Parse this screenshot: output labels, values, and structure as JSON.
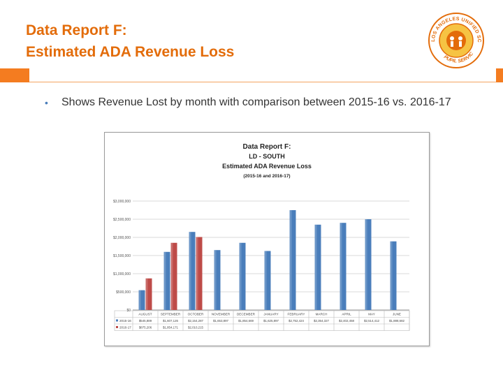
{
  "slide": {
    "title_line1": "Data Report F:",
    "title_line2": "Estimated ADA Revenue Loss",
    "bullet": "Shows Revenue Lost by month with comparison between 2015-16 vs. 2016-17"
  },
  "logo": {
    "ring_text": "LOS ANGELES UNIFIED SCHOOL DISTRICT",
    "bottom_text": "PUPIL SERVICES"
  },
  "colors": {
    "title": "#e36c0a",
    "accent": "#f47c20",
    "series_2015": "#4a7ebb",
    "series_2016": "#be4b48"
  },
  "chart_data": {
    "type": "bar",
    "title": "Data Report F:",
    "subtitle1": "LD - SOUTH",
    "subtitle2": "Estimated ADA Revenue Loss",
    "subtitle3": "(2015-16 and 2016-17)",
    "categories": [
      "AUGUST",
      "SEPTEMBER",
      "OCTOBER",
      "NOVEMBER",
      "DECEMBER",
      "JANUARY",
      "FEBRUARY",
      "MARCH",
      "APRIL",
      "MAY",
      "JUNE"
    ],
    "yticks": [
      "$3,000,000",
      "$2,500,000",
      "$2,000,000",
      "$1,500,000",
      "$1,000,000",
      "$500,000",
      "$0"
    ],
    "ylim": [
      0,
      3000000
    ],
    "grid": true,
    "series": [
      {
        "name": "2015-16",
        "color": "#4a7ebb",
        "values": [
          545000,
          1600000,
          2150000,
          1650000,
          1850000,
          1625000,
          2750000,
          2350000,
          2400000,
          2500000,
          1890000
        ],
        "labels": [
          "$545,889",
          "$1,607,126",
          "$2,154,287",
          "$1,653,897",
          "$1,854,669",
          "$1,625,897",
          "$2,752,424",
          "$2,354,327",
          "$2,402,458",
          "$2,514,412",
          "$1,888,682"
        ]
      },
      {
        "name": "2016-17",
        "color": "#be4b48",
        "values": [
          870000,
          1850000,
          2010000,
          null,
          null,
          null,
          null,
          null,
          null,
          null,
          null
        ],
        "labels": [
          "$875,206",
          "$1,854,171",
          "$2,010,215",
          "",
          "",
          "",
          "",
          "",
          "",
          "",
          ""
        ]
      }
    ]
  }
}
